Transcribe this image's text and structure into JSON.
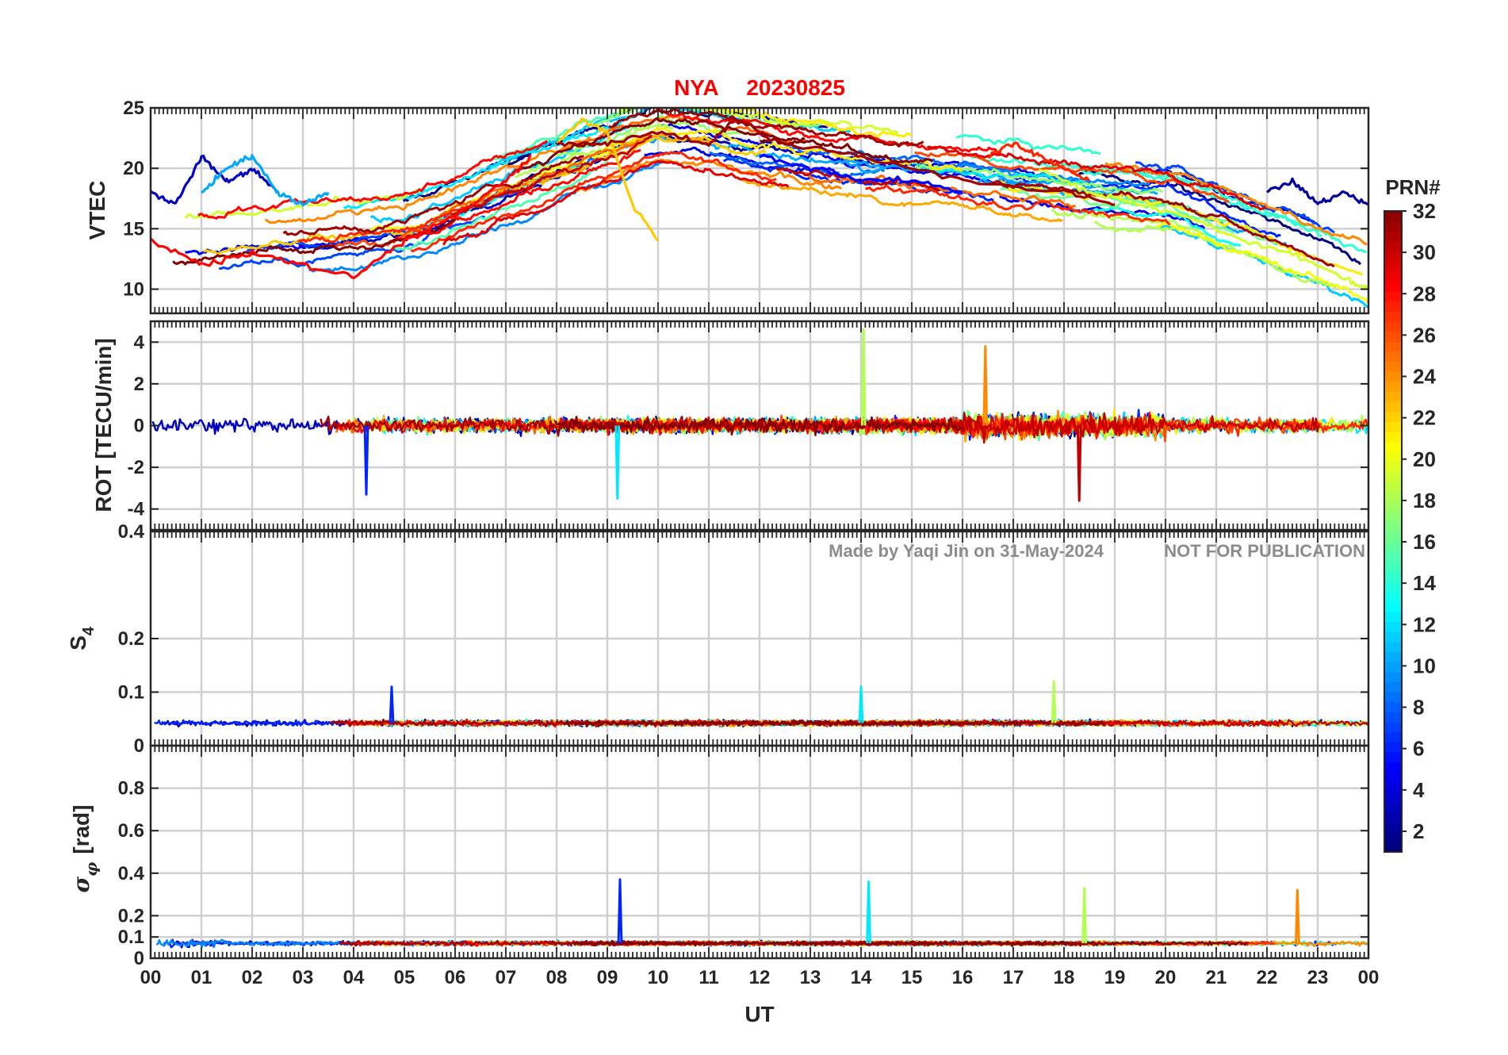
{
  "title": {
    "station": "NYA",
    "date": "20230825",
    "color": "#ff0000"
  },
  "watermark": {
    "left": "Made by Yaqi Jin on 31-May-2024",
    "right": "NOT FOR PUBLICATION"
  },
  "colorbar": {
    "title": "PRN#",
    "ticks": [
      "2",
      "4",
      "6",
      "8",
      "10",
      "12",
      "14",
      "16",
      "18",
      "20",
      "22",
      "24",
      "26",
      "28",
      "30",
      "32"
    ],
    "range": [
      1,
      32
    ],
    "colormap": "jet"
  },
  "x_axis": {
    "label": "UT",
    "ticks": [
      "00",
      "01",
      "02",
      "03",
      "04",
      "05",
      "06",
      "07",
      "08",
      "09",
      "10",
      "11",
      "12",
      "13",
      "14",
      "15",
      "16",
      "17",
      "18",
      "19",
      "20",
      "21",
      "22",
      "23",
      "00"
    ]
  },
  "chart_data": [
    {
      "type": "line",
      "ylabel": "VTEC",
      "ylim": [
        8,
        25
      ],
      "yticks": [
        10,
        15,
        20,
        25
      ],
      "xlim": [
        0,
        24
      ],
      "grid": true,
      "series_count": 32,
      "series": [
        {
          "name": "3",
          "x": [
            0.0,
            0.5,
            1.0,
            1.5,
            2.0,
            2.5
          ],
          "values": [
            18,
            17,
            21,
            19,
            20,
            18
          ]
        },
        {
          "name": "10",
          "x": [
            1.0,
            1.5,
            2.0,
            2.5,
            3.0,
            3.5
          ],
          "values": [
            18,
            20,
            21,
            18,
            17,
            18
          ]
        },
        {
          "name": "28",
          "x": [
            0.0,
            1.0,
            2.0,
            3.0,
            4.0,
            5.0,
            6.0,
            7.0,
            7.5
          ],
          "values": [
            14,
            12,
            13,
            12,
            11,
            14,
            16,
            19,
            21
          ]
        },
        {
          "name": "22",
          "x": [
            8.0,
            8.5,
            9.0,
            9.5,
            10.0
          ],
          "values": [
            22,
            24,
            23,
            17,
            14
          ]
        },
        {
          "name": "31",
          "x": [
            8.0,
            9.0,
            10.0,
            11.0,
            11.5,
            12.5,
            14.0,
            16.0,
            18.0,
            19.0
          ],
          "values": [
            22,
            22,
            23,
            22,
            24,
            22,
            21,
            19,
            18,
            17
          ]
        },
        {
          "name": "5",
          "x": [
            12.0,
            13.0,
            14.0,
            15.0,
            16.0
          ],
          "values": [
            21,
            20,
            19,
            19,
            18
          ]
        },
        {
          "name": "27",
          "x": [
            16.5,
            17.0,
            17.5,
            18.0,
            18.5
          ],
          "values": [
            21,
            22,
            21,
            20,
            19
          ]
        },
        {
          "name": "19",
          "x": [
            17.5,
            18.5,
            19.5,
            20.5,
            21.5,
            22.5,
            23.5,
            24.0
          ],
          "values": [
            20,
            18,
            17,
            16,
            14,
            13,
            11,
            10
          ]
        },
        {
          "name": "2",
          "x": [
            22.0,
            22.5,
            23.0,
            23.5,
            24.0
          ],
          "values": [
            18,
            19,
            17,
            18,
            17
          ]
        }
      ]
    },
    {
      "type": "line",
      "ylabel": "ROT [TECU/min]",
      "ylim": [
        -5,
        5
      ],
      "yticks": [
        -4,
        -2,
        0,
        2,
        4
      ],
      "xlim": [
        0,
        24
      ],
      "grid": true,
      "series_count": 32,
      "note_peaks": [
        {
          "x": 4.25,
          "value": -3.3
        },
        {
          "x": 9.2,
          "value": -3.5
        },
        {
          "x": 14.05,
          "value": 4.6
        },
        {
          "x": 16.45,
          "value": 3.8
        },
        {
          "x": 18.3,
          "value": -3.6
        }
      ]
    },
    {
      "type": "line",
      "ylabel": "S",
      "ylabel_sub": "4",
      "ylim": [
        0,
        0.4
      ],
      "yticks": [
        0,
        0.1,
        0.2,
        0.4
      ],
      "ytick_labels": [
        "0",
        "0.1",
        "0.2",
        "0.4"
      ],
      "xlim": [
        0,
        24
      ],
      "grid": true,
      "series_count": 32,
      "note_peaks": [
        {
          "x": 4.75,
          "value": 0.11
        },
        {
          "x": 14.0,
          "value": 0.11
        },
        {
          "x": 17.8,
          "value": 0.12
        }
      ]
    },
    {
      "type": "line",
      "ylabel": "σ",
      "ylabel_sub": "φ",
      "ylabel_unit": "[rad]",
      "ylim": [
        0,
        1
      ],
      "yticks": [
        0,
        0.1,
        0.2,
        0.4,
        0.6,
        0.8
      ],
      "ytick_labels": [
        "0",
        "0.1",
        "0.2",
        "0.4",
        "0.6",
        "0.8"
      ],
      "xlim": [
        0,
        24
      ],
      "grid": true,
      "series_count": 32,
      "note_peaks": [
        {
          "x": 9.25,
          "value": 0.37
        },
        {
          "x": 14.15,
          "value": 0.36
        },
        {
          "x": 18.4,
          "value": 0.33
        },
        {
          "x": 22.6,
          "value": 0.32
        }
      ]
    }
  ]
}
